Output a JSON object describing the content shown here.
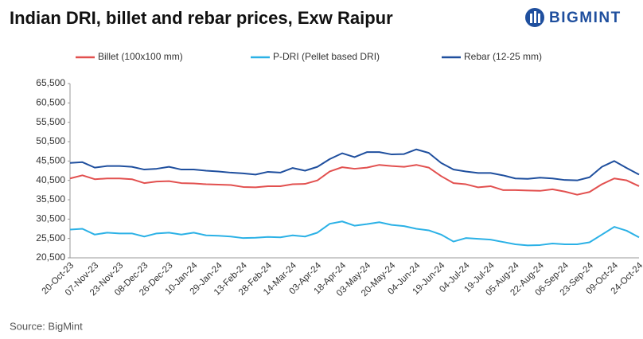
{
  "chart_data": {
    "type": "line",
    "title": "Indian DRI, billet and rebar prices, Exw Raipur",
    "logo": "BIGMINT",
    "source": "Source: BigMint",
    "categories": [
      "20-Oct-23",
      null,
      "07-Nov-23",
      null,
      "23-Nov-23",
      null,
      "08-Dec-23",
      null,
      "26-Dec-23",
      null,
      "10-Jan-24",
      null,
      "29-Jan-24",
      null,
      "13-Feb-24",
      null,
      "28-Feb-24",
      null,
      "14-Mar-24",
      null,
      "03-Apr-24",
      null,
      "18-Apr-24",
      null,
      "03-May-24",
      null,
      "20-May-24",
      null,
      "04-Jun-24",
      null,
      "19-Jun-24",
      null,
      "04-Jul-24",
      null,
      "19-Jul-24",
      null,
      "05-Aug-24",
      null,
      "22-Aug-24",
      null,
      "06-Sep-24",
      null,
      "23-Sep-24",
      null,
      "09-Oct-24",
      null,
      "24-Oct-24"
    ],
    "series": [
      {
        "name": "Billet (100x100 mm)",
        "color": "#e2504f",
        "values": [
          41000,
          41800,
          40800,
          41000,
          41000,
          40800,
          39800,
          40200,
          40300,
          39800,
          39700,
          39500,
          39400,
          39300,
          38800,
          38700,
          39000,
          39000,
          39500,
          39600,
          40500,
          42800,
          43900,
          43500,
          43800,
          44500,
          44200,
          44000,
          44500,
          43800,
          41600,
          39800,
          39500,
          38700,
          39000,
          38000,
          38000,
          37900,
          37800,
          38200,
          37600,
          36800,
          37500,
          39500,
          41000,
          40500,
          39000
        ]
      },
      {
        "name": "P-DRI (Pellet based DRI)",
        "color": "#2bb1e6",
        "values": [
          27800,
          28000,
          26500,
          27000,
          26800,
          26800,
          26000,
          26800,
          27000,
          26500,
          27000,
          26300,
          26200,
          26000,
          25600,
          25700,
          25900,
          25800,
          26300,
          26000,
          27000,
          29300,
          29900,
          28800,
          29200,
          29700,
          29000,
          28700,
          28000,
          27600,
          26500,
          24700,
          25600,
          25400,
          25200,
          24600,
          24000,
          23700,
          23800,
          24200,
          24000,
          24000,
          24500,
          26500,
          28500,
          27500,
          25800
        ]
      },
      {
        "name": "Rebar (12-25 mm)",
        "color": "#1f4f9e",
        "values": [
          45000,
          45200,
          43800,
          44200,
          44200,
          44000,
          43300,
          43500,
          44000,
          43300,
          43300,
          43000,
          42800,
          42500,
          42300,
          42000,
          42700,
          42500,
          43700,
          43000,
          44000,
          46000,
          47500,
          46500,
          47800,
          47800,
          47200,
          47300,
          48500,
          47600,
          45000,
          43300,
          42800,
          42400,
          42400,
          41800,
          41000,
          40900,
          41200,
          41000,
          40600,
          40500,
          41300,
          44000,
          45500,
          43700,
          42000
        ]
      }
    ],
    "ylim": [
      20500,
      65500
    ],
    "yticks": [
      {
        "value": 20500,
        "label": "20,500"
      },
      {
        "value": 25500,
        "label": "25,500"
      },
      {
        "value": 30500,
        "label": "30,500"
      },
      {
        "value": 35500,
        "label": "35,500"
      },
      {
        "value": 40500,
        "label": "40,500"
      },
      {
        "value": 45500,
        "label": "45,500"
      },
      {
        "value": 50500,
        "label": "50,500"
      },
      {
        "value": 55500,
        "label": "55,500"
      },
      {
        "value": 60500,
        "label": "60,500"
      },
      {
        "value": 65500,
        "label": "65,500"
      }
    ],
    "grid": false,
    "legend": "top"
  }
}
